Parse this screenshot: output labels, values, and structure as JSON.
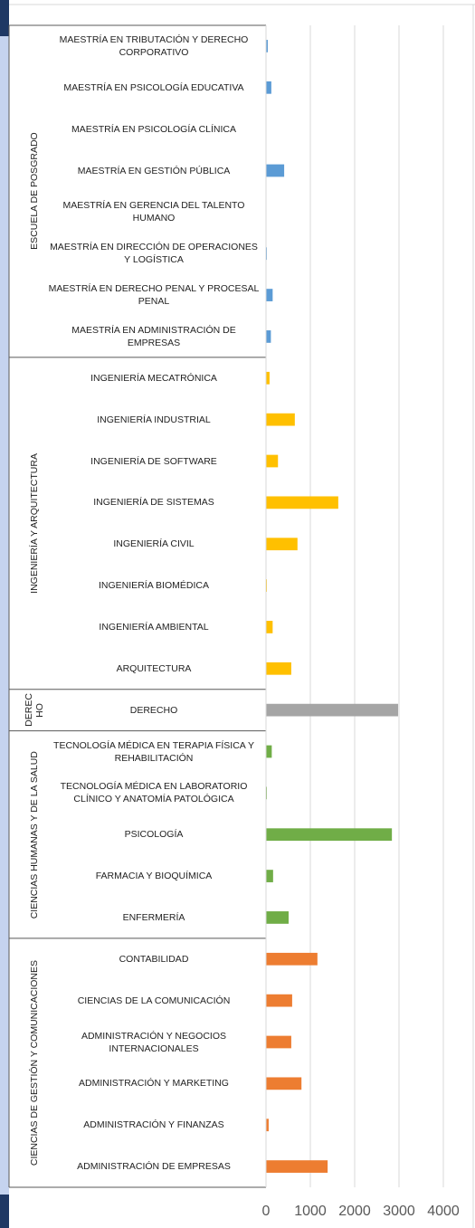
{
  "chart_data": {
    "type": "bar",
    "xlim": [
      0,
      4000
    ],
    "xticks": [
      0,
      1000,
      2000,
      3000,
      4000
    ],
    "grid": true,
    "groups": [
      {
        "name": "ESCUELA DE POSGRADO",
        "color": "#5b9bd5",
        "categories": [
          "MAESTRÍA EN TRIBUTACIÓN Y DERECHO CORPORATIVO",
          "MAESTRÍA EN PSICOLOGÍA EDUCATIVA",
          "MAESTRÍA EN PSICOLOGÍA CLÍNICA",
          "MAESTRÍA EN GESTIÓN PÚBLICA",
          "MAESTRÍA EN GERENCIA DEL TALENTO HUMANO",
          "MAESTRÍA EN DIRECCIÓN DE OPERACIONES Y LOGÍSTICA",
          "MAESTRÍA EN DERECHO PENAL Y PROCESAL PENAL",
          "MAESTRÍA EN ADMINISTRACIÓN DE EMPRESAS"
        ],
        "values": [
          40,
          120,
          0,
          410,
          10,
          20,
          150,
          110
        ]
      },
      {
        "name": "INGENIERÍA Y ARQUITECTURA",
        "color": "#ffc000",
        "categories": [
          "INGENIERÍA MECATRÓNICA",
          "INGENIERÍA INDUSTRIAL",
          "INGENIERÍA DE SOFTWARE",
          "INGENIERÍA DE SISTEMAS",
          "INGENIERÍA CIVIL",
          "INGENIERÍA BIOMÉDICA",
          "INGENIERÍA AMBIENTAL",
          "ARQUITECTURA"
        ],
        "values": [
          80,
          650,
          270,
          1630,
          710,
          20,
          150,
          570
        ]
      },
      {
        "name": "DERECHO",
        "color": "#a5a5a5",
        "categories": [
          "DERECHO"
        ],
        "values": [
          2980
        ]
      },
      {
        "name": "CIENCIAS HUMANAS Y DE LA SALUD",
        "color": "#70ad47",
        "categories": [
          "TECNOLOGÍA MÉDICA EN TERAPIA FÍSICA Y REHABILITACIÓN",
          "TECNOLOGÍA MÉDICA EN LABORATORIO CLÍNICO Y ANATOMÍA PATOLÓGICA",
          "PSICOLOGÍA",
          "FARMACIA Y BIOQUÍMICA",
          "ENFERMERÍA"
        ],
        "values": [
          130,
          20,
          2840,
          160,
          510
        ]
      },
      {
        "name": "CIENCIAS DE GESTIÓN Y COMUNICACIONES",
        "color": "#ed7d31",
        "categories": [
          "CONTABILIDAD",
          "CIENCIAS DE LA COMUNICACIÓN",
          "ADMINISTRACIÓN Y NEGOCIOS INTERNACIONALES",
          "ADMINISTRACIÓN Y MARKETING",
          "ADMINISTRACIÓN Y FINANZAS",
          "ADMINISTRACIÓN DE EMPRESAS"
        ],
        "values": [
          1160,
          590,
          570,
          800,
          60,
          1390
        ]
      }
    ]
  }
}
